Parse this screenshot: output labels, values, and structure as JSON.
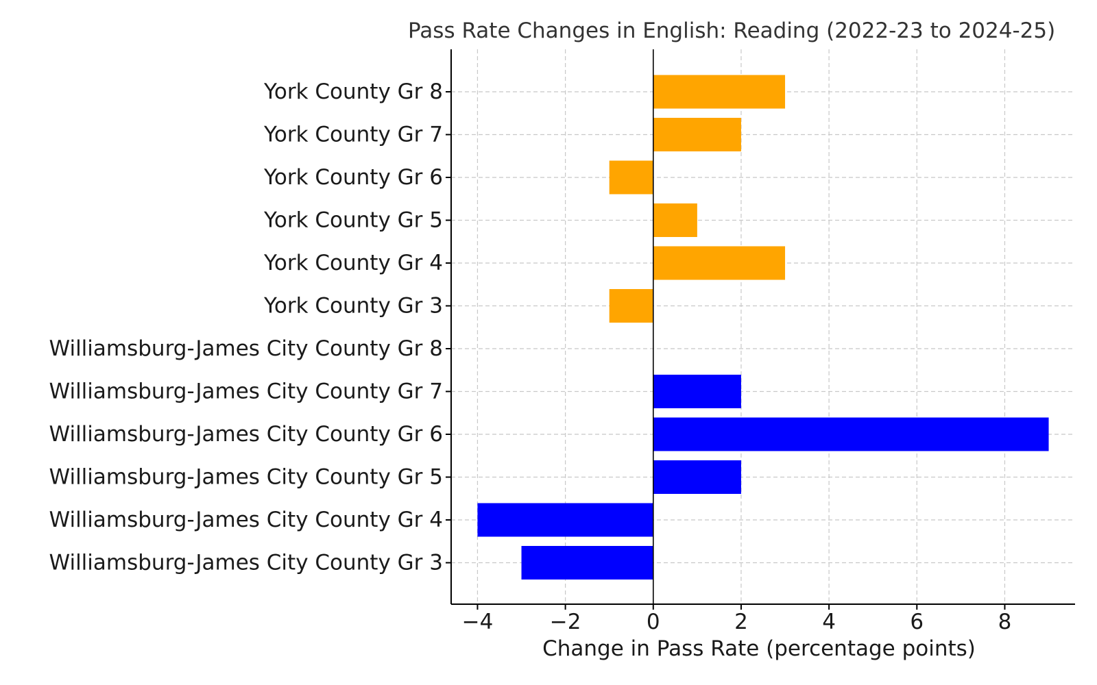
{
  "chart_data": {
    "type": "bar",
    "orientation": "horizontal",
    "title": "Pass Rate Changes in English: Reading (2022-23 to 2024-25)",
    "xlabel": "Change in Pass Rate (percentage points)",
    "ylabel": "",
    "xlim": [
      -4.6,
      9.6
    ],
    "xticks": [
      -4,
      -2,
      0,
      2,
      4,
      6,
      8
    ],
    "xtick_labels": [
      "−4",
      "−2",
      "0",
      "2",
      "4",
      "6",
      "8"
    ],
    "grid": true,
    "categories": [
      "Williamsburg-James City County Gr 3",
      "Williamsburg-James City County Gr 4",
      "Williamsburg-James City County Gr 5",
      "Williamsburg-James City County Gr 6",
      "Williamsburg-James City County Gr 7",
      "Williamsburg-James City County Gr 8",
      "York County Gr 3",
      "York County Gr 4",
      "York County Gr 5",
      "York County Gr 6",
      "York County Gr 7",
      "York County Gr 8"
    ],
    "values": [
      -3,
      -4,
      2,
      9,
      2,
      0,
      -1,
      3,
      1,
      -1,
      2,
      3
    ],
    "colors": [
      "#0000ff",
      "#0000ff",
      "#0000ff",
      "#0000ff",
      "#0000ff",
      "#0000ff",
      "#ffa500",
      "#ffa500",
      "#ffa500",
      "#ffa500",
      "#ffa500",
      "#ffa500"
    ]
  }
}
